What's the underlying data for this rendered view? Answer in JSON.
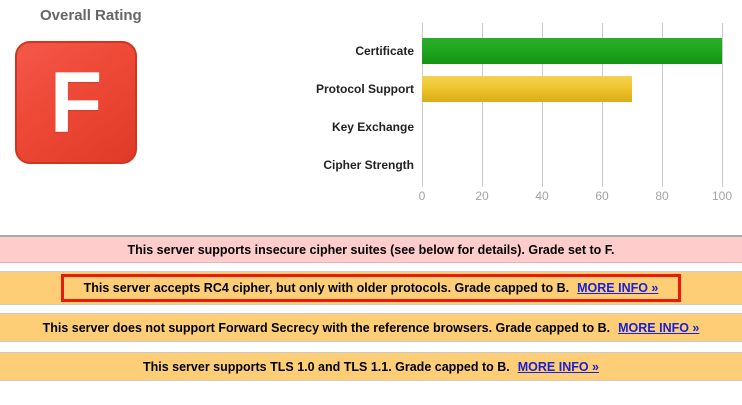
{
  "header": {
    "title": "Overall Rating",
    "grade": "F"
  },
  "chart_data": {
    "type": "bar",
    "orientation": "horizontal",
    "title": "",
    "categories": [
      "Certificate",
      "Protocol Support",
      "Key Exchange",
      "Cipher Strength"
    ],
    "values": [
      100,
      70,
      0,
      0
    ],
    "bar_colors": [
      "green",
      "yellow",
      null,
      null
    ],
    "xlim": [
      0,
      100
    ],
    "x_ticks": [
      "0",
      "20",
      "40",
      "60",
      "80",
      "100"
    ],
    "grid": true,
    "legend": "none"
  },
  "colors": {
    "grade_badge_red": "#ee4836",
    "bar_green": "#1da11d",
    "bar_yellow": "#efc62e",
    "error_banner_bg": "#ffcccc",
    "warning_banner_bg": "#fdce76",
    "link_blue": "#1a21d1",
    "annotation_red": "#ec1a0e",
    "gridline_gray": "#cccccc"
  },
  "messages": [
    {
      "type": "error",
      "text": "This server supports insecure cipher suites (see below for details). Grade set to F.",
      "link": null,
      "highlighted": false
    },
    {
      "type": "warning",
      "text": "This server accepts RC4 cipher, but only with older protocols. Grade capped to B.",
      "link": "MORE INFO »",
      "highlighted": true
    },
    {
      "type": "warning",
      "text": "This server does not support Forward Secrecy with the reference browsers. Grade capped to B.",
      "link": "MORE INFO »",
      "highlighted": false
    },
    {
      "type": "warning",
      "text": "This server supports TLS 1.0 and TLS 1.1. Grade capped to B.",
      "link": "MORE INFO »",
      "highlighted": false
    }
  ]
}
